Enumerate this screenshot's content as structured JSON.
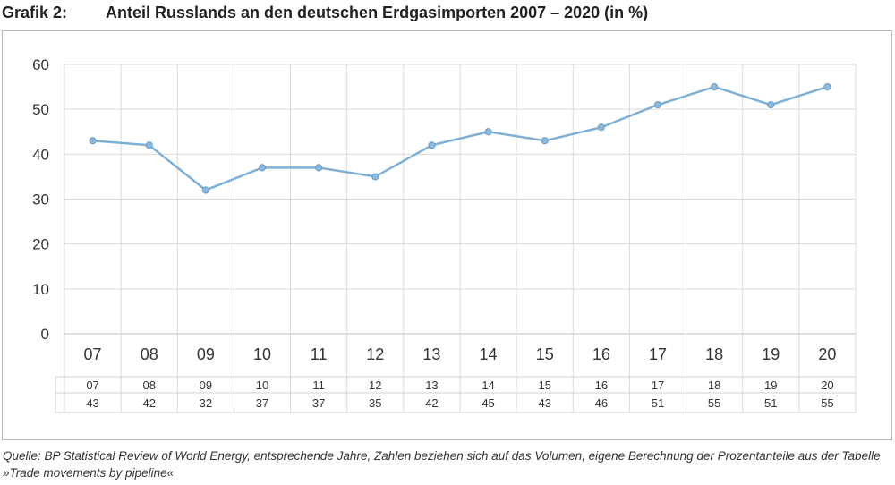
{
  "header": {
    "label": "Grafik 2:",
    "title": "Anteil Russlands an den deutschen Erdgasimporten 2007 – 2020 (in %)"
  },
  "footnote": "Quelle: BP Statistical Review of World Energy, entsprechende Jahre, Zahlen beziehen sich auf das Volumen, eigene Berechnung der Prozentanteile aus der Tabelle »Trade movements by pipeline«",
  "colors": {
    "line": "#7eb0d6",
    "marker_fill": "#8db9dc",
    "marker_stroke": "#6a9cc6",
    "grid": "#d9d9d9",
    "axis": "#bfbfbf",
    "table_border": "#d0d0d0"
  },
  "chart_data": {
    "type": "line",
    "categories": [
      "07",
      "08",
      "09",
      "10",
      "11",
      "12",
      "13",
      "14",
      "15",
      "16",
      "17",
      "18",
      "19",
      "20"
    ],
    "series": [
      {
        "values": [
          43,
          42,
          32,
          37,
          37,
          35,
          42,
          45,
          43,
          46,
          51,
          55,
          51,
          55
        ]
      }
    ],
    "ylim": [
      0,
      60
    ],
    "yticks": [
      0,
      10,
      20,
      30,
      40,
      50,
      60
    ],
    "grid": true,
    "data_table": true
  }
}
